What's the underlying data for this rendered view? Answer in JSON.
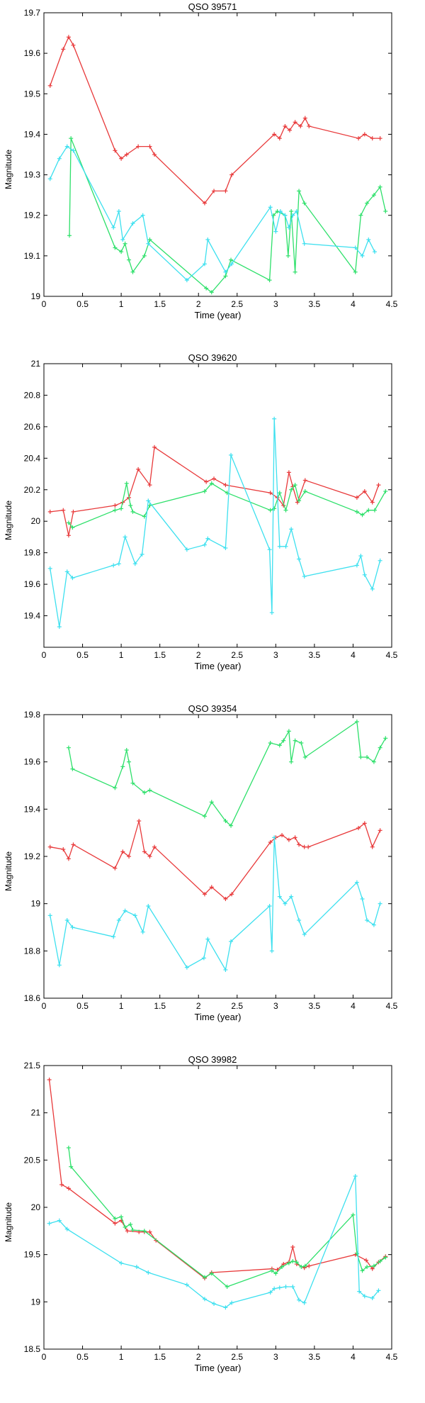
{
  "chart_data": [
    {
      "type": "line",
      "title": "QSO 39571",
      "xlabel": "Time (year)",
      "ylabel": "Magnitude",
      "xlim": [
        0,
        4.5
      ],
      "ylim": [
        19,
        19.7
      ],
      "xticks": [
        "0",
        "0.5",
        "1",
        "1.5",
        "2",
        "2.5",
        "3",
        "3.5",
        "4",
        "4.5"
      ],
      "yticks": [
        "19",
        "19.1",
        "19.2",
        "19.3",
        "19.4",
        "19.5",
        "19.6",
        "19.7"
      ],
      "series": [
        {
          "color": "#e8393a",
          "x": [
            0.08,
            0.25,
            0.32,
            0.38,
            0.92,
            1.0,
            1.07,
            1.22,
            1.37,
            1.43,
            2.08,
            2.2,
            2.35,
            2.43,
            2.98,
            3.05,
            3.12,
            3.18,
            3.25,
            3.32,
            3.38,
            3.43,
            4.07,
            4.15,
            4.25,
            4.35
          ],
          "y": [
            19.52,
            19.61,
            19.64,
            19.62,
            19.36,
            19.34,
            19.35,
            19.37,
            19.37,
            19.35,
            19.23,
            19.26,
            19.26,
            19.3,
            19.4,
            19.39,
            19.42,
            19.41,
            19.43,
            19.42,
            19.44,
            19.42,
            19.39,
            19.4,
            19.39,
            19.39
          ]
        },
        {
          "color": "#2de06a",
          "x": [
            0.33,
            0.35,
            0.92,
            1.0,
            1.05,
            1.1,
            1.15,
            1.3,
            1.37,
            2.1,
            2.17,
            2.35,
            2.42,
            2.92,
            2.97,
            3.02,
            3.12,
            3.16,
            3.2,
            3.25,
            3.3,
            3.37,
            4.03,
            4.1,
            4.18,
            4.27,
            4.35,
            4.42
          ],
          "y": [
            19.15,
            19.39,
            19.12,
            19.11,
            19.13,
            19.09,
            19.06,
            19.1,
            19.14,
            19.02,
            19.01,
            19.05,
            19.09,
            19.04,
            19.2,
            19.21,
            19.2,
            19.1,
            19.21,
            19.06,
            19.26,
            19.23,
            19.06,
            19.2,
            19.23,
            19.25,
            19.27,
            19.21
          ]
        },
        {
          "color": "#3de0ef",
          "x": [
            0.08,
            0.2,
            0.3,
            0.38,
            0.9,
            0.97,
            1.02,
            1.15,
            1.28,
            1.35,
            1.85,
            2.08,
            2.12,
            2.35,
            2.43,
            2.93,
            3.0,
            3.06,
            3.12,
            3.17,
            3.22,
            3.27,
            3.37,
            4.03,
            4.12,
            4.2,
            4.28
          ],
          "y": [
            19.29,
            19.34,
            19.37,
            19.36,
            19.17,
            19.21,
            19.14,
            19.18,
            19.2,
            19.13,
            19.04,
            19.08,
            19.14,
            19.06,
            19.08,
            19.22,
            19.16,
            19.21,
            19.2,
            19.17,
            19.2,
            19.21,
            19.13,
            19.12,
            19.1,
            19.14,
            19.11
          ]
        }
      ]
    },
    {
      "type": "line",
      "title": "QSO 39620",
      "xlabel": "Time (year)",
      "ylabel": "Magnitude",
      "xlim": [
        0,
        4.5
      ],
      "ylim": [
        19.2,
        21
      ],
      "xticks": [
        "0",
        "0.5",
        "1",
        "1.5",
        "2",
        "2.5",
        "3",
        "3.5",
        "4",
        "4.5"
      ],
      "yticks": [
        "19.4",
        "19.6",
        "19.8",
        "20",
        "20.2",
        "20.4",
        "20.6",
        "20.8",
        "21"
      ],
      "series": [
        {
          "color": "#e8393a",
          "x": [
            0.08,
            0.25,
            0.32,
            0.38,
            0.92,
            1.02,
            1.1,
            1.22,
            1.37,
            1.43,
            2.1,
            2.2,
            2.35,
            2.93,
            3.02,
            3.1,
            3.17,
            3.22,
            3.28,
            3.38,
            4.05,
            4.15,
            4.25,
            4.33
          ],
          "y": [
            20.06,
            20.07,
            19.91,
            20.06,
            20.1,
            20.12,
            20.15,
            20.33,
            20.23,
            20.47,
            20.25,
            20.27,
            20.23,
            20.18,
            20.15,
            20.1,
            20.31,
            20.22,
            20.12,
            20.26,
            20.15,
            20.19,
            20.12,
            20.23
          ]
        },
        {
          "color": "#2de06a",
          "x": [
            0.32,
            0.37,
            0.92,
            1.0,
            1.07,
            1.12,
            1.15,
            1.3,
            1.37,
            2.08,
            2.17,
            2.37,
            2.93,
            2.98,
            3.05,
            3.13,
            3.2,
            3.25,
            3.3,
            3.38,
            4.05,
            4.12,
            4.2,
            4.28,
            4.42
          ],
          "y": [
            19.99,
            19.96,
            20.07,
            20.08,
            20.24,
            20.1,
            20.06,
            20.03,
            20.1,
            20.19,
            20.24,
            20.18,
            20.07,
            20.08,
            20.18,
            20.07,
            20.2,
            20.23,
            20.13,
            20.19,
            20.06,
            20.04,
            20.07,
            20.07,
            20.19
          ]
        },
        {
          "color": "#3de0ef",
          "x": [
            0.08,
            0.2,
            0.3,
            0.37,
            0.9,
            0.97,
            1.05,
            1.18,
            1.27,
            1.35,
            1.85,
            2.08,
            2.12,
            2.35,
            2.42,
            2.92,
            2.95,
            2.98,
            3.05,
            3.13,
            3.2,
            3.3,
            3.37,
            4.05,
            4.1,
            4.15,
            4.25,
            4.35
          ],
          "y": [
            19.7,
            19.33,
            19.68,
            19.64,
            19.72,
            19.73,
            19.9,
            19.73,
            19.79,
            20.13,
            19.82,
            19.85,
            19.89,
            19.83,
            20.42,
            19.82,
            19.42,
            20.65,
            19.84,
            19.84,
            19.95,
            19.76,
            19.65,
            19.72,
            19.78,
            19.66,
            19.57,
            19.75
          ]
        }
      ]
    },
    {
      "type": "line",
      "title": "QSO 39354",
      "xlabel": "Time (year)",
      "ylabel": "Magnitude",
      "xlim": [
        0,
        4.5
      ],
      "ylim": [
        18.6,
        19.8
      ],
      "xticks": [
        "0",
        "0.5",
        "1",
        "1.5",
        "2",
        "2.5",
        "3",
        "3.5",
        "4",
        "4.5"
      ],
      "yticks": [
        "18.6",
        "18.8",
        "19",
        "19.2",
        "19.4",
        "19.6",
        "19.8"
      ],
      "series": [
        {
          "color": "#e8393a",
          "x": [
            0.08,
            0.25,
            0.32,
            0.38,
            0.92,
            1.02,
            1.1,
            1.23,
            1.3,
            1.37,
            1.43,
            2.08,
            2.17,
            2.35,
            2.43,
            2.93,
            3.0,
            3.08,
            3.17,
            3.25,
            3.3,
            3.37,
            3.42,
            4.07,
            4.15,
            4.25,
            4.35
          ],
          "y": [
            19.24,
            19.23,
            19.19,
            19.25,
            19.15,
            19.22,
            19.2,
            19.35,
            19.22,
            19.2,
            19.24,
            19.04,
            19.07,
            19.02,
            19.04,
            19.26,
            19.28,
            19.29,
            19.27,
            19.28,
            19.25,
            19.24,
            19.24,
            19.32,
            19.34,
            19.24,
            19.31
          ]
        },
        {
          "color": "#2de06a",
          "x": [
            0.32,
            0.37,
            0.92,
            1.02,
            1.07,
            1.1,
            1.15,
            1.3,
            1.37,
            2.08,
            2.17,
            2.35,
            2.42,
            2.93,
            3.05,
            3.1,
            3.17,
            3.2,
            3.25,
            3.33,
            3.38,
            4.05,
            4.1,
            4.18,
            4.27,
            4.35,
            4.42
          ],
          "y": [
            19.66,
            19.57,
            19.49,
            19.58,
            19.65,
            19.6,
            19.51,
            19.47,
            19.48,
            19.37,
            19.43,
            19.35,
            19.33,
            19.68,
            19.67,
            19.69,
            19.73,
            19.6,
            19.69,
            19.68,
            19.62,
            19.77,
            19.62,
            19.62,
            19.6,
            19.66,
            19.7
          ]
        },
        {
          "color": "#3de0ef",
          "x": [
            0.08,
            0.2,
            0.3,
            0.37,
            0.9,
            0.97,
            1.05,
            1.18,
            1.28,
            1.35,
            1.85,
            2.07,
            2.12,
            2.35,
            2.42,
            2.92,
            2.95,
            2.98,
            3.05,
            3.12,
            3.2,
            3.3,
            3.37,
            4.05,
            4.12,
            4.18,
            4.27,
            4.35
          ],
          "y": [
            18.95,
            18.74,
            18.93,
            18.9,
            18.86,
            18.93,
            18.97,
            18.95,
            18.88,
            18.99,
            18.73,
            18.77,
            18.85,
            18.72,
            18.84,
            18.99,
            18.8,
            19.28,
            19.03,
            19.0,
            19.03,
            18.93,
            18.87,
            19.09,
            19.02,
            18.93,
            18.91,
            19.0
          ]
        }
      ]
    },
    {
      "type": "line",
      "title": "QSO 39982",
      "xlabel": "Time (year)",
      "ylabel": "Magnitude",
      "xlim": [
        0,
        4.5
      ],
      "ylim": [
        18.5,
        21.5
      ],
      "xticks": [
        "0",
        "0.5",
        "1",
        "1.5",
        "2",
        "2.5",
        "3",
        "3.5",
        "4",
        "4.5"
      ],
      "yticks": [
        "18.5",
        "19",
        "19.5",
        "20",
        "20.5",
        "21",
        "21.5"
      ],
      "series": [
        {
          "color": "#e8393a",
          "x": [
            0.07,
            0.23,
            0.32,
            0.92,
            1.0,
            1.08,
            1.23,
            1.3,
            1.37,
            1.45,
            2.08,
            2.17,
            2.95,
            3.02,
            3.1,
            3.17,
            3.22,
            3.27,
            3.37,
            3.43,
            4.03,
            4.17,
            4.25,
            4.33,
            4.42
          ],
          "y": [
            21.35,
            20.24,
            20.2,
            19.83,
            19.86,
            19.75,
            19.74,
            19.74,
            19.74,
            19.65,
            19.25,
            19.31,
            19.35,
            19.34,
            19.4,
            19.42,
            19.58,
            19.4,
            19.36,
            19.38,
            19.5,
            19.44,
            19.35,
            19.42,
            19.48
          ]
        },
        {
          "color": "#2de06a",
          "x": [
            0.32,
            0.35,
            0.92,
            1.0,
            1.05,
            1.12,
            1.15,
            1.3,
            2.08,
            2.17,
            2.37,
            2.95,
            3.0,
            3.08,
            3.17,
            3.22,
            3.27,
            3.33,
            3.38,
            4.0,
            4.05,
            4.12,
            4.18,
            4.27,
            4.35,
            4.42
          ],
          "y": [
            20.63,
            20.43,
            19.88,
            19.9,
            19.79,
            19.82,
            19.76,
            19.75,
            19.26,
            19.3,
            19.16,
            19.33,
            19.3,
            19.37,
            19.41,
            19.43,
            19.42,
            19.37,
            19.38,
            19.92,
            19.51,
            19.33,
            19.37,
            19.38,
            19.43,
            19.47
          ]
        },
        {
          "color": "#3de0ef",
          "x": [
            0.07,
            0.2,
            0.3,
            1.0,
            1.2,
            1.35,
            1.85,
            2.08,
            2.2,
            2.35,
            2.43,
            2.93,
            2.98,
            3.05,
            3.13,
            3.22,
            3.3,
            3.37,
            4.03,
            4.08,
            4.15,
            4.25,
            4.33
          ],
          "y": [
            19.83,
            19.86,
            19.77,
            19.41,
            19.37,
            19.31,
            19.18,
            19.03,
            18.98,
            18.94,
            18.99,
            19.1,
            19.14,
            19.15,
            19.16,
            19.16,
            19.02,
            18.99,
            20.33,
            19.11,
            19.06,
            19.04,
            19.12
          ]
        }
      ]
    }
  ]
}
